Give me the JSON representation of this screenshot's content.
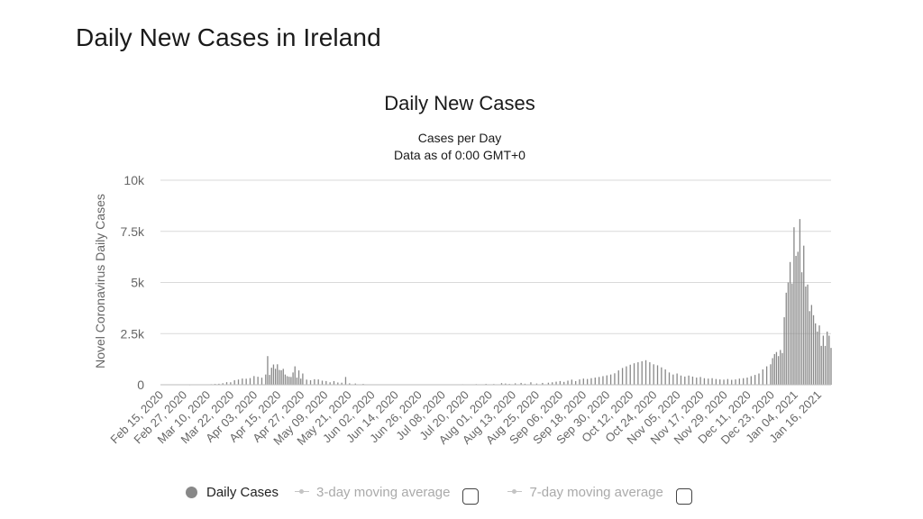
{
  "page": {
    "title": "Daily New Cases in Ireland"
  },
  "colors": {
    "bars": "#888888",
    "grid": "#d9d9d9",
    "axis_text": "#666666",
    "legend_inactive": "#c4c4c4"
  },
  "legend": {
    "items": [
      {
        "label": "Daily Cases",
        "active": true
      },
      {
        "label": "3-day moving average",
        "active": false
      },
      {
        "label": "7-day moving average",
        "active": false
      }
    ]
  },
  "chart_data": {
    "type": "bar",
    "title": "Daily New Cases",
    "subtitle_lines": [
      "Cases per Day",
      "Data as of 0:00 GMT+0"
    ],
    "ylabel": "Novel Coronavirus Daily Cases",
    "xlabel": "",
    "ylim": [
      0,
      10000
    ],
    "y_ticks": [
      {
        "value": 0,
        "label": "0"
      },
      {
        "value": 2500,
        "label": "2.5k"
      },
      {
        "value": 5000,
        "label": "5k"
      },
      {
        "value": 7500,
        "label": "7.5k"
      },
      {
        "value": 10000,
        "label": "10k"
      }
    ],
    "x_range": [
      "2020-02-15",
      "2021-01-24"
    ],
    "x_tick_labels": [
      "Feb 15, 2020",
      "Feb 27, 2020",
      "Mar 10, 2020",
      "Mar 22, 2020",
      "Apr 03, 2020",
      "Apr 15, 2020",
      "Apr 27, 2020",
      "May 09, 2020",
      "May 21, 2020",
      "Jun 02, 2020",
      "Jun 14, 2020",
      "Jun 26, 2020",
      "Jul 08, 2020",
      "Jul 20, 2020",
      "Aug 01, 2020",
      "Aug 13, 2020",
      "Aug 25, 2020",
      "Sep 06, 2020",
      "Sep 18, 2020",
      "Sep 30, 2020",
      "Oct 12, 2020",
      "Oct 24, 2020",
      "Nov 05, 2020",
      "Nov 17, 2020",
      "Nov 29, 2020",
      "Dec 11, 2020",
      "Dec 23, 2020",
      "Jan 04, 2021",
      "Jan 16, 2021"
    ],
    "grid": true,
    "legend_position": "bottom",
    "series": [
      {
        "name": "Daily Cases",
        "points": [
          [
            "2020-03-01",
            1
          ],
          [
            "2020-03-05",
            6
          ],
          [
            "2020-03-10",
            10
          ],
          [
            "2020-03-12",
            27
          ],
          [
            "2020-03-14",
            40
          ],
          [
            "2020-03-16",
            48
          ],
          [
            "2020-03-18",
            74
          ],
          [
            "2020-03-20",
            126
          ],
          [
            "2020-03-22",
            121
          ],
          [
            "2020-03-24",
            219
          ],
          [
            "2020-03-26",
            255
          ],
          [
            "2020-03-28",
            302
          ],
          [
            "2020-03-30",
            295
          ],
          [
            "2020-04-01",
            325
          ],
          [
            "2020-04-03",
            424
          ],
          [
            "2020-04-05",
            390
          ],
          [
            "2020-04-07",
            345
          ],
          [
            "2020-04-09",
            500
          ],
          [
            "2020-04-10",
            1400
          ],
          [
            "2020-04-11",
            480
          ],
          [
            "2020-04-12",
            830
          ],
          [
            "2020-04-13",
            990
          ],
          [
            "2020-04-14",
            780
          ],
          [
            "2020-04-15",
            1000
          ],
          [
            "2020-04-16",
            724
          ],
          [
            "2020-04-17",
            709
          ],
          [
            "2020-04-18",
            778
          ],
          [
            "2020-04-19",
            500
          ],
          [
            "2020-04-20",
            420
          ],
          [
            "2020-04-21",
            390
          ],
          [
            "2020-04-22",
            380
          ],
          [
            "2020-04-23",
            600
          ],
          [
            "2020-04-24",
            900
          ],
          [
            "2020-04-25",
            350
          ],
          [
            "2020-04-26",
            700
          ],
          [
            "2020-04-27",
            300
          ],
          [
            "2020-04-28",
            550
          ],
          [
            "2020-04-30",
            250
          ],
          [
            "2020-05-02",
            220
          ],
          [
            "2020-05-04",
            270
          ],
          [
            "2020-05-06",
            260
          ],
          [
            "2020-05-08",
            200
          ],
          [
            "2020-05-10",
            180
          ],
          [
            "2020-05-12",
            120
          ],
          [
            "2020-05-14",
            180
          ],
          [
            "2020-05-16",
            110
          ],
          [
            "2020-05-18",
            100
          ],
          [
            "2020-05-20",
            380
          ],
          [
            "2020-05-22",
            70
          ],
          [
            "2020-05-25",
            60
          ],
          [
            "2020-05-29",
            40
          ],
          [
            "2020-06-02",
            20
          ],
          [
            "2020-06-07",
            15
          ],
          [
            "2020-06-14",
            12
          ],
          [
            "2020-06-21",
            10
          ],
          [
            "2020-06-28",
            8
          ],
          [
            "2020-07-05",
            15
          ],
          [
            "2020-07-12",
            20
          ],
          [
            "2020-07-19",
            25
          ],
          [
            "2020-07-26",
            30
          ],
          [
            "2020-07-31",
            40
          ],
          [
            "2020-08-04",
            35
          ],
          [
            "2020-08-08",
            80
          ],
          [
            "2020-08-10",
            60
          ],
          [
            "2020-08-12",
            40
          ],
          [
            "2020-08-15",
            70
          ],
          [
            "2020-08-18",
            90
          ],
          [
            "2020-08-20",
            50
          ],
          [
            "2020-08-23",
            120
          ],
          [
            "2020-08-26",
            60
          ],
          [
            "2020-08-29",
            90
          ],
          [
            "2020-09-01",
            100
          ],
          [
            "2020-09-03",
            120
          ],
          [
            "2020-09-05",
            150
          ],
          [
            "2020-09-07",
            180
          ],
          [
            "2020-09-09",
            140
          ],
          [
            "2020-09-11",
            200
          ],
          [
            "2020-09-13",
            250
          ],
          [
            "2020-09-15",
            180
          ],
          [
            "2020-09-17",
            260
          ],
          [
            "2020-09-19",
            300
          ],
          [
            "2020-09-21",
            280
          ],
          [
            "2020-09-23",
            320
          ],
          [
            "2020-09-25",
            350
          ],
          [
            "2020-09-27",
            380
          ],
          [
            "2020-09-29",
            420
          ],
          [
            "2020-10-01",
            460
          ],
          [
            "2020-10-03",
            500
          ],
          [
            "2020-10-05",
            560
          ],
          [
            "2020-10-07",
            700
          ],
          [
            "2020-10-09",
            820
          ],
          [
            "2020-10-11",
            900
          ],
          [
            "2020-10-13",
            980
          ],
          [
            "2020-10-15",
            1050
          ],
          [
            "2020-10-17",
            1100
          ],
          [
            "2020-10-19",
            1150
          ],
          [
            "2020-10-21",
            1200
          ],
          [
            "2020-10-23",
            1100
          ],
          [
            "2020-10-25",
            1000
          ],
          [
            "2020-10-27",
            950
          ],
          [
            "2020-10-29",
            850
          ],
          [
            "2020-10-31",
            750
          ],
          [
            "2020-11-02",
            600
          ],
          [
            "2020-11-04",
            500
          ],
          [
            "2020-11-06",
            550
          ],
          [
            "2020-11-08",
            450
          ],
          [
            "2020-11-10",
            400
          ],
          [
            "2020-11-12",
            450
          ],
          [
            "2020-11-14",
            400
          ],
          [
            "2020-11-16",
            350
          ],
          [
            "2020-11-18",
            380
          ],
          [
            "2020-11-20",
            320
          ],
          [
            "2020-11-22",
            300
          ],
          [
            "2020-11-24",
            320
          ],
          [
            "2020-11-26",
            280
          ],
          [
            "2020-11-28",
            260
          ],
          [
            "2020-11-30",
            250
          ],
          [
            "2020-12-02",
            280
          ],
          [
            "2020-12-04",
            240
          ],
          [
            "2020-12-06",
            260
          ],
          [
            "2020-12-08",
            300
          ],
          [
            "2020-12-10",
            320
          ],
          [
            "2020-12-12",
            350
          ],
          [
            "2020-12-14",
            420
          ],
          [
            "2020-12-16",
            480
          ],
          [
            "2020-12-18",
            550
          ],
          [
            "2020-12-20",
            750
          ],
          [
            "2020-12-22",
            900
          ],
          [
            "2020-12-24",
            1000
          ],
          [
            "2020-12-25",
            1300
          ],
          [
            "2020-12-26",
            1500
          ],
          [
            "2020-12-27",
            1600
          ],
          [
            "2020-12-28",
            1400
          ],
          [
            "2020-12-29",
            1700
          ],
          [
            "2020-12-30",
            1550
          ],
          [
            "2020-12-31",
            3300
          ],
          [
            "2021-01-01",
            4500
          ],
          [
            "2021-01-02",
            5000
          ],
          [
            "2021-01-03",
            6000
          ],
          [
            "2021-01-04",
            4950
          ],
          [
            "2021-01-05",
            7700
          ],
          [
            "2021-01-06",
            6300
          ],
          [
            "2021-01-07",
            6500
          ],
          [
            "2021-01-08",
            8100
          ],
          [
            "2021-01-09",
            5500
          ],
          [
            "2021-01-10",
            6800
          ],
          [
            "2021-01-11",
            4800
          ],
          [
            "2021-01-12",
            4900
          ],
          [
            "2021-01-13",
            3600
          ],
          [
            "2021-01-14",
            3900
          ],
          [
            "2021-01-15",
            3400
          ],
          [
            "2021-01-16",
            3000
          ],
          [
            "2021-01-17",
            2600
          ],
          [
            "2021-01-18",
            2900
          ],
          [
            "2021-01-19",
            1900
          ],
          [
            "2021-01-20",
            2400
          ],
          [
            "2021-01-21",
            1900
          ],
          [
            "2021-01-22",
            2600
          ],
          [
            "2021-01-23",
            2400
          ],
          [
            "2021-01-24",
            1800
          ]
        ]
      }
    ]
  }
}
